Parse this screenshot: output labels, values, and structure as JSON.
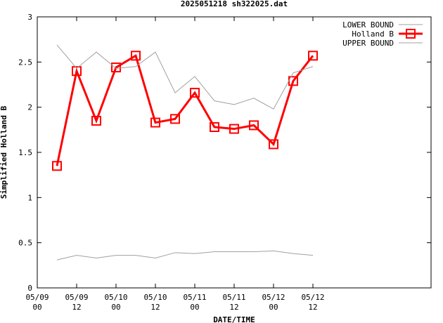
{
  "chart_data": {
    "type": "line",
    "title": "2025051218 sh322025.dat",
    "xlabel": "DATE/TIME",
    "ylabel": "Simplified Holland B",
    "xlim": [
      0,
      20
    ],
    "ylim": [
      0,
      3
    ],
    "x_ticks": [
      {
        "pos": 0,
        "line1": "05/09",
        "line2": "00"
      },
      {
        "pos": 2,
        "line1": "05/09",
        "line2": "12"
      },
      {
        "pos": 4,
        "line1": "05/10",
        "line2": "00"
      },
      {
        "pos": 6,
        "line1": "05/10",
        "line2": "12"
      },
      {
        "pos": 8,
        "line1": "05/11",
        "line2": "00"
      },
      {
        "pos": 10,
        "line1": "05/11",
        "line2": "12"
      },
      {
        "pos": 12,
        "line1": "05/12",
        "line2": "00"
      },
      {
        "pos": 14,
        "line1": "05/12",
        "line2": "12"
      }
    ],
    "y_ticks": [
      "0",
      "0.5",
      "1",
      "1.5",
      "2",
      "2.5",
      "3"
    ],
    "x": [
      1,
      2,
      3,
      4,
      5,
      6,
      7,
      8,
      9,
      10,
      11,
      12,
      13,
      14
    ],
    "series": [
      {
        "name": "LOWER BOUND",
        "color": "#a0a0a0",
        "marker": "none",
        "values": [
          0.31,
          0.36,
          0.33,
          0.36,
          0.36,
          0.33,
          0.39,
          0.38,
          0.4,
          0.4,
          0.4,
          0.41,
          0.38,
          0.36
        ]
      },
      {
        "name": "Holland B",
        "color": "#ff0000",
        "marker": "square",
        "values": [
          1.35,
          2.4,
          1.85,
          2.44,
          2.57,
          1.83,
          1.87,
          2.16,
          1.78,
          1.76,
          1.8,
          1.59,
          2.29,
          2.57
        ]
      },
      {
        "name": "UPPER BOUND",
        "color": "#a0a0a0",
        "marker": "none",
        "values": [
          2.69,
          2.43,
          2.61,
          2.43,
          2.45,
          2.61,
          2.16,
          2.34,
          2.07,
          2.03,
          2.1,
          1.98,
          2.38,
          2.45
        ]
      }
    ],
    "grid": false,
    "legend_position": "top-right"
  }
}
